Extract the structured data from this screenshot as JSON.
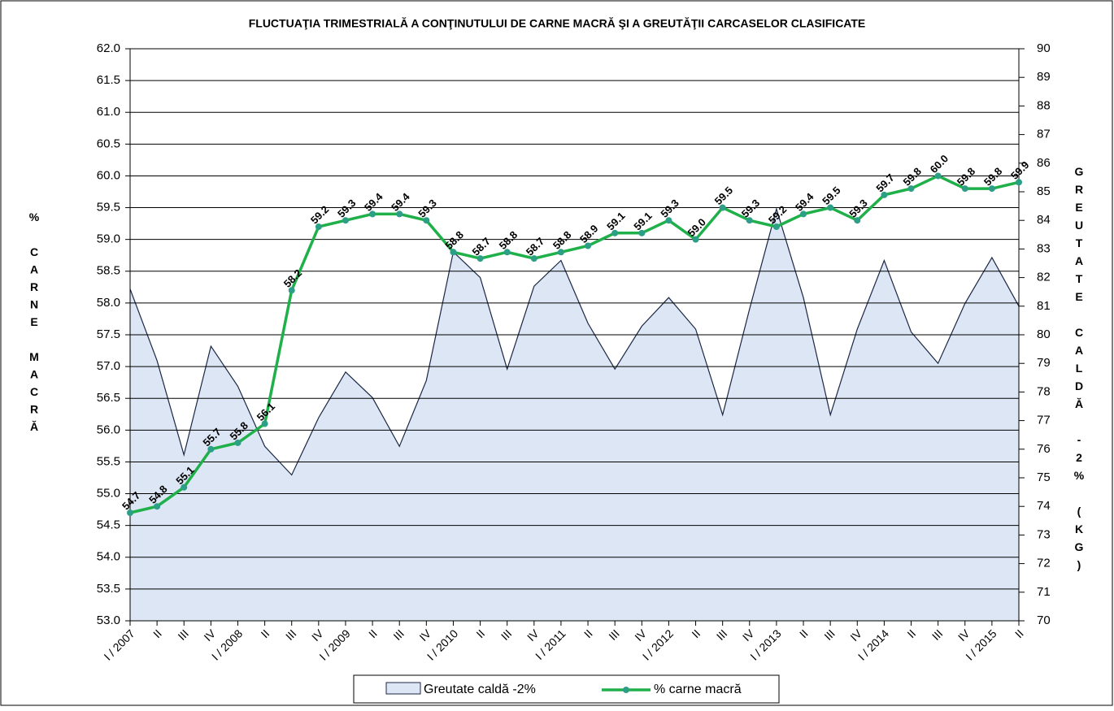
{
  "chart_data": {
    "type": "area-line",
    "title": "FLUCTUAŢIA TRIMESTRIALĂ  A CONŢINUTULUI DE CARNE MACRĂ ŞI A GREUTĂŢII CARCASELOR CLASIFICATE",
    "ylabel": "% CARNE MACRĂ",
    "y2label": "GREUTATE CALDĂ -2% (KG)",
    "categories": [
      "I / 2007",
      "II",
      "III",
      "IV",
      "I / 2008",
      "II",
      "III",
      "IV",
      "I / 2009",
      "II",
      "III",
      "IV",
      "I / 2010",
      "II",
      "III",
      "IV",
      "I / 2011",
      "II",
      "III",
      "IV",
      "I / 2012",
      "II",
      "III",
      "IV",
      "I / 2013",
      "II",
      "III",
      "IV",
      "I / 2014",
      "II",
      "III",
      "IV",
      "I / 2015",
      "II"
    ],
    "series": [
      {
        "name": "Greutate caldă -2%",
        "type": "area",
        "axis": "y2",
        "color": "#dce6f4",
        "edge_color": "#1a2744",
        "values": [
          81.6,
          79.1,
          75.8,
          79.6,
          78.2,
          76.1,
          75.1,
          77.1,
          78.7,
          77.8,
          76.1,
          78.4,
          82.9,
          82.0,
          78.8,
          81.7,
          82.6,
          80.4,
          78.8,
          80.3,
          81.3,
          80.2,
          77.2,
          80.9,
          84.4,
          81.3,
          77.2,
          80.2,
          82.6,
          80.1,
          79.0,
          81.1,
          82.7,
          81.0
        ]
      },
      {
        "name": "% carne macră",
        "type": "line",
        "axis": "y",
        "color": "#1fb04a",
        "marker_color": "#2c9f86",
        "values": [
          54.7,
          54.8,
          55.1,
          55.7,
          55.8,
          56.1,
          58.2,
          59.2,
          59.3,
          59.4,
          59.4,
          59.3,
          58.8,
          58.7,
          58.8,
          58.7,
          58.8,
          58.9,
          59.1,
          59.1,
          59.3,
          59.0,
          59.5,
          59.3,
          59.2,
          59.4,
          59.5,
          59.3,
          59.7,
          59.8,
          60.0,
          59.8,
          59.8,
          59.9
        ],
        "value_labels": [
          "54.7",
          "54.8",
          "55.1",
          "55.7",
          "55.8",
          "56.1",
          "58.2",
          "59.2",
          "59.3",
          "59.4",
          "59.4",
          "59.3",
          "58.8",
          "58.7",
          "58.8",
          "58.7",
          "58.8",
          "58.9",
          "59.1",
          "59.1",
          "59.3",
          "59.0",
          "59.5",
          "59.3",
          "59.2",
          "59.4",
          "59.5",
          "59.3",
          "59.7",
          "59.8",
          "60.0",
          "59.8",
          "59.8",
          "59.9"
        ]
      }
    ],
    "ylim": [
      53,
      62
    ],
    "yticks": [
      {
        "value": 53,
        "label": "53.0"
      },
      53.5,
      {
        "value": 54,
        "label": "54.0"
      },
      54.5,
      {
        "value": 55,
        "label": "55.0"
      },
      55.5,
      {
        "value": 56,
        "label": "56.0"
      },
      56.5,
      {
        "value": 57,
        "label": "57.0"
      },
      57.5,
      {
        "value": 58,
        "label": "58.0"
      },
      58.5,
      {
        "value": 59,
        "label": "59.0"
      },
      59.5,
      {
        "value": 60,
        "label": "60.0"
      },
      60.5,
      {
        "value": 61,
        "label": "61.0"
      },
      61.5,
      {
        "value": 62,
        "label": "62.0"
      }
    ],
    "y2lim": [
      70,
      90
    ],
    "y2ticks": [
      70,
      71,
      72,
      73,
      74,
      75,
      76,
      77,
      78,
      79,
      80,
      81,
      82,
      83,
      84,
      85,
      86,
      87,
      88,
      89,
      90
    ],
    "grid": true,
    "legend": "bottom"
  }
}
